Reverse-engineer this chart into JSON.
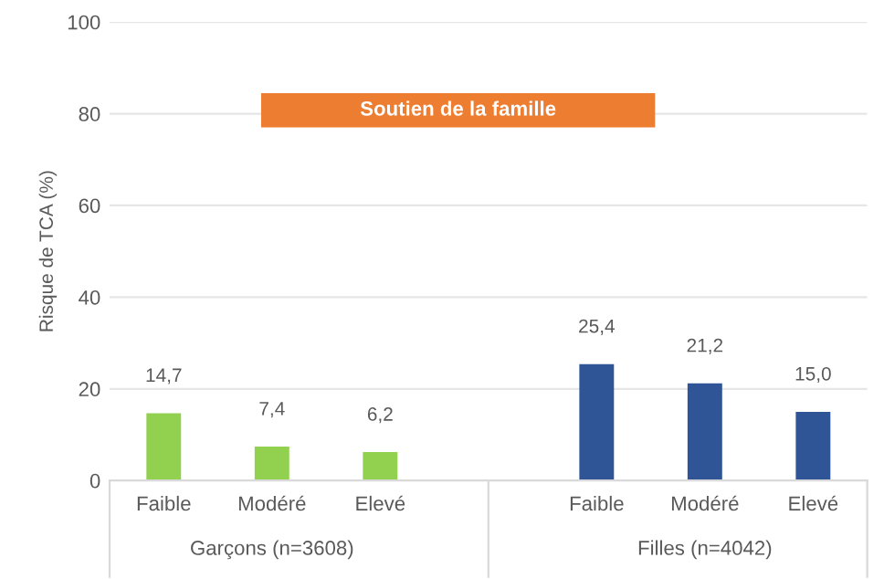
{
  "chart_data": {
    "type": "bar",
    "ylabel": "Risque de TCA (%)",
    "categories": [
      "Faible",
      "Modéré",
      "Elevé",
      null,
      "Faible",
      "Modéré",
      "Elevé"
    ],
    "values": [
      14.7,
      7.4,
      6.2,
      null,
      25.4,
      21.2,
      15.0
    ],
    "colors": [
      "#92d050",
      "#92d050",
      "#92d050",
      null,
      "#2f5597",
      "#2f5597",
      "#2f5597"
    ],
    "value_labels": [
      "14,7",
      "7,4",
      "6,2",
      null,
      "25,4",
      "21,2",
      "15,0"
    ],
    "annotations": [
      "Soutien de la famille",
      "Garçons (n=3608)",
      "Filles (n=4042)"
    ],
    "ylim": [
      0,
      100
    ],
    "yticks": [
      0,
      20,
      40,
      60,
      80,
      100
    ],
    "grid": "y",
    "legend": false
  }
}
